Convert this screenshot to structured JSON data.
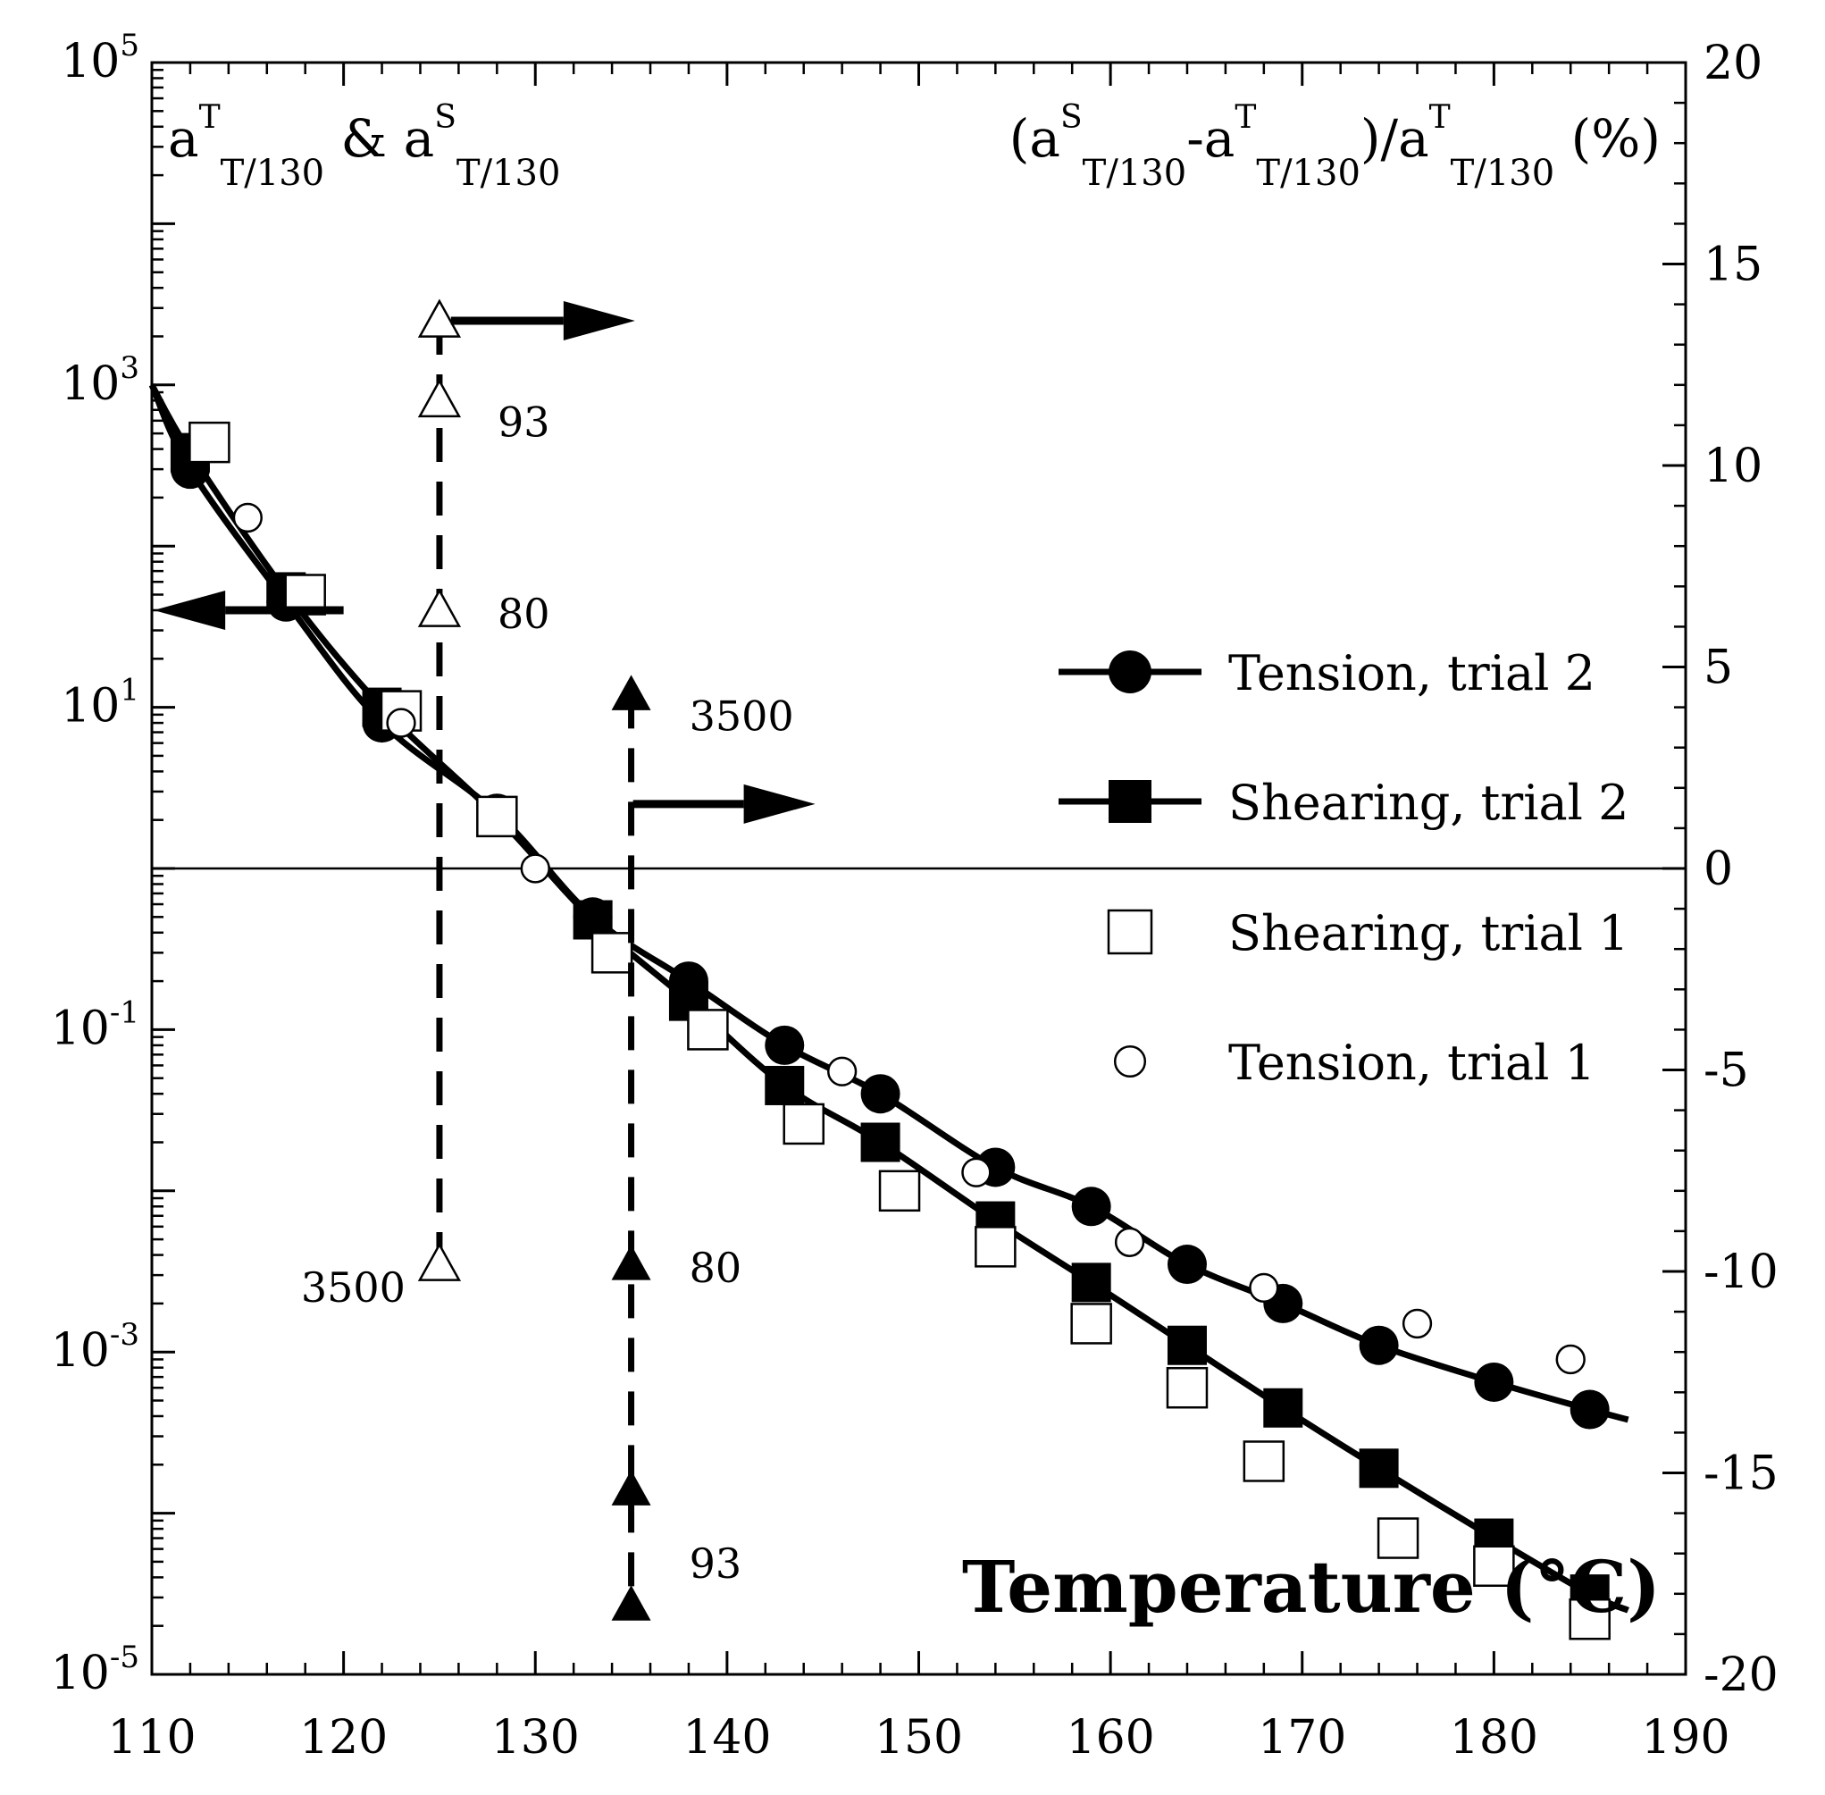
{
  "chart_data": {
    "type": "scatter",
    "xlabel": "Temperature (°C)",
    "xlim": [
      110,
      190
    ],
    "x_ticks": [
      110,
      120,
      130,
      140,
      150,
      160,
      170,
      180,
      190
    ],
    "y_left": {
      "scale": "log",
      "lim": [
        1e-05,
        100000
      ],
      "tick_exponents": [
        -5,
        -3,
        -1,
        1,
        3,
        5
      ],
      "tick_base": "10",
      "label": {
        "parts": [
          "a",
          "T",
          "T/130",
          " & a",
          "S",
          "T/130"
        ]
      }
    },
    "y_right": {
      "lim": [
        -20,
        20
      ],
      "ticks": [
        -20,
        -15,
        -10,
        -5,
        0,
        5,
        10,
        15,
        20
      ],
      "label": {
        "parts": [
          "(a",
          "S",
          "T/130",
          "-a",
          "T",
          "T/130",
          ")/a",
          "T",
          "T/130",
          " (%)"
        ]
      }
    },
    "series": [
      {
        "name": "Tension, trial 2",
        "marker": "filled-circle",
        "line": true,
        "x": [
          112,
          117,
          122,
          128,
          133,
          138,
          143,
          148,
          154,
          159,
          164,
          169,
          174,
          180,
          185
        ],
        "y": [
          300,
          45,
          8,
          2.2,
          0.5,
          0.2,
          0.08,
          0.04,
          0.014,
          0.008,
          0.0035,
          0.002,
          0.0011,
          0.00065,
          0.00044
        ]
      },
      {
        "name": "Shearing, trial 2",
        "marker": "filled-square",
        "line": true,
        "x": [
          112,
          117,
          122,
          128,
          133,
          138,
          143,
          148,
          154,
          159,
          164,
          169,
          174,
          180,
          185
        ],
        "y": [
          380,
          52,
          10,
          2.1,
          0.48,
          0.15,
          0.045,
          0.02,
          0.0065,
          0.0027,
          0.0011,
          0.00045,
          0.00019,
          7e-05,
          3.15e-05
        ]
      },
      {
        "name": "Shearing, trial 1",
        "marker": "open-square",
        "line": false,
        "x": [
          113,
          118,
          123,
          128,
          134,
          139,
          144,
          149,
          154,
          159,
          164,
          168,
          175,
          180,
          185
        ],
        "y": [
          440,
          50,
          9.5,
          2.1,
          0.3,
          0.1,
          0.026,
          0.01,
          0.0045,
          0.0015,
          0.0006,
          0.00021,
          7e-05,
          4.7e-05,
          2.2e-05
        ]
      },
      {
        "name": "Tension, trial 1",
        "marker": "open-circle",
        "line": false,
        "x": [
          115,
          123,
          130,
          146,
          153,
          161,
          168,
          176,
          184
        ],
        "y": [
          150,
          8,
          1.0,
          0.055,
          0.013,
          0.0048,
          0.0025,
          0.0015,
          0.0009
        ]
      }
    ],
    "annotations": [
      {
        "x": 125,
        "marker": "open-triangle",
        "axis": "left",
        "points": [
          {
            "y": 2500,
            "label": ""
          },
          {
            "y": 800,
            "label": "93"
          },
          {
            "y": 40,
            "label": "80"
          },
          {
            "y": 0.0035,
            "label": "3500"
          }
        ]
      },
      {
        "x": 135,
        "marker": "filled-triangle",
        "axis": "left",
        "points": [
          {
            "y": 12,
            "label": "3500"
          },
          {
            "y": 0.0035,
            "label": "80"
          },
          {
            "y": 0.00014,
            "label": ""
          },
          {
            "y": 2.7e-05,
            "label": "93"
          }
        ]
      }
    ]
  }
}
